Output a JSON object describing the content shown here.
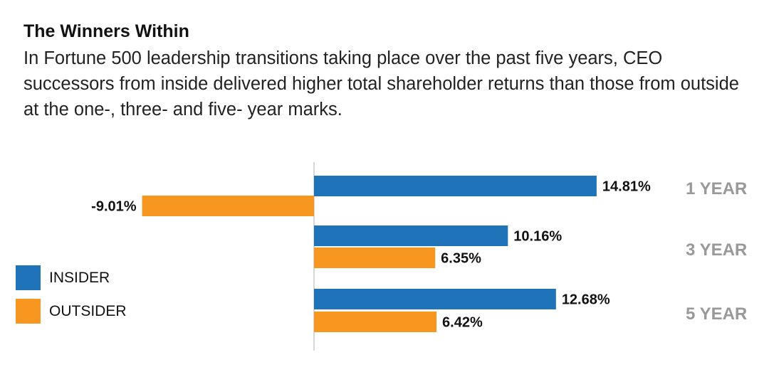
{
  "title": "The Winners Within",
  "subtitle": "In Fortune 500 leadership transitions taking place over the past five years, CEO successors from inside delivered higher total shareholder returns than those from outside at the one-, three- and five- year marks.",
  "chart_data": {
    "type": "bar",
    "orientation": "horizontal",
    "categories": [
      "1 YEAR",
      "3 YEAR",
      "5 YEAR"
    ],
    "series": [
      {
        "name": "INSIDER",
        "color": "#1f73b9",
        "values": [
          14.81,
          10.16,
          12.68
        ],
        "labels": [
          "14.81%",
          "10.16%",
          "12.68%"
        ]
      },
      {
        "name": "OUTSIDER",
        "color": "#f7971f",
        "values": [
          -9.01,
          6.35,
          6.42
        ],
        "labels": [
          "-9.01%",
          "6.35%",
          "6.42%"
        ]
      }
    ],
    "unit": "%",
    "legend_position": "left",
    "grid": false,
    "category_label_color": "#999999"
  }
}
